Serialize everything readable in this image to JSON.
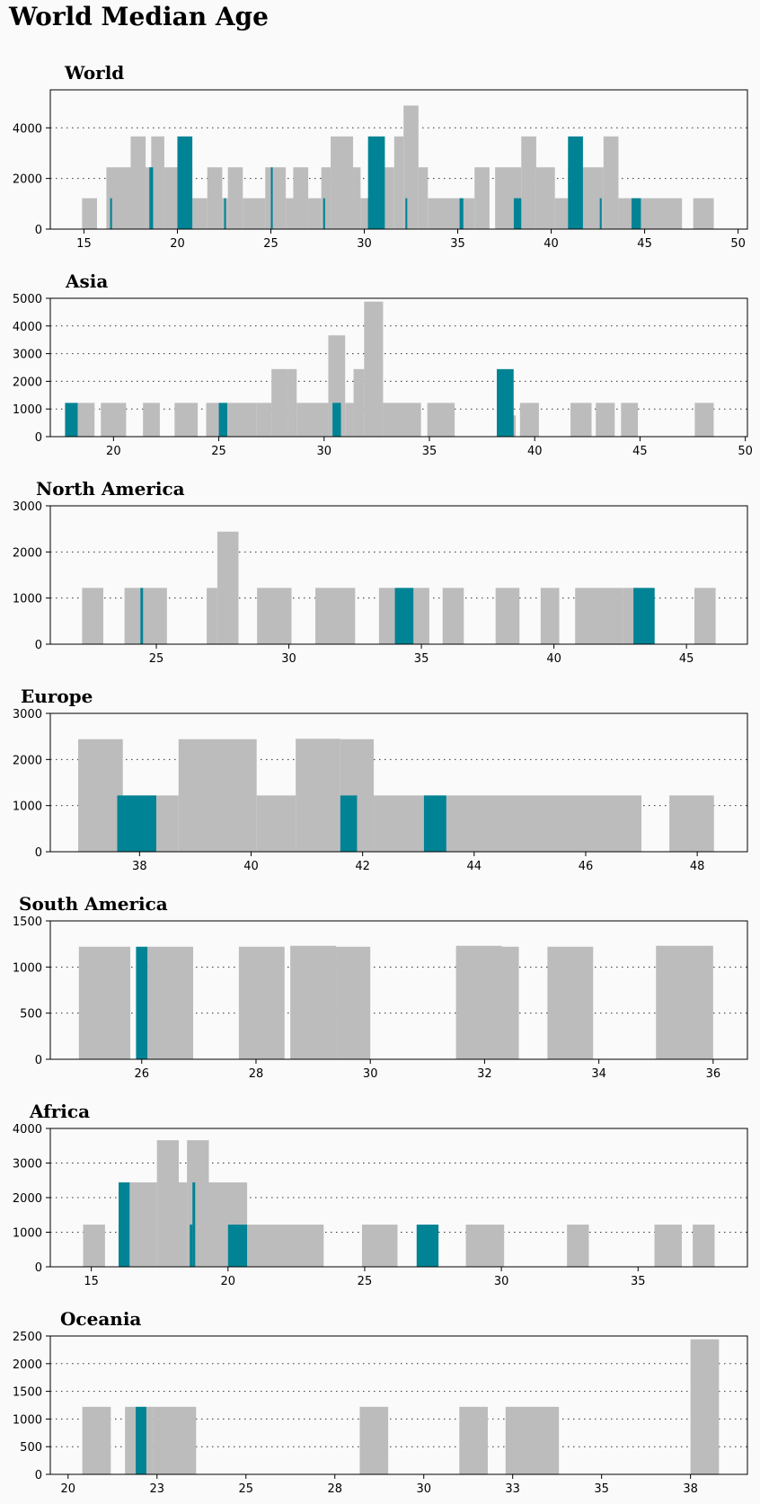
{
  "title": "World Median Age",
  "colors": {
    "background": "#fafafa",
    "bar": "#bcbcbc",
    "highlight": "#008394"
  },
  "chart_data": [
    {
      "type": "bar",
      "title": "World",
      "xlim": [
        13.2,
        50.5
      ],
      "ylim": [
        0,
        5500
      ],
      "xticks": [
        15,
        20,
        25,
        30,
        35,
        40,
        45,
        50
      ],
      "yticks": [
        0,
        2000,
        4000
      ],
      "grid": "y-dotted",
      "bars": [
        [
          14.9,
          15.7,
          1220,
          0
        ],
        [
          16.2,
          17.5,
          2440,
          0
        ],
        [
          17.5,
          18.3,
          3660,
          0
        ],
        [
          18.3,
          18.6,
          2440,
          0
        ],
        [
          18.6,
          19.3,
          3660,
          0
        ],
        [
          19.3,
          20.0,
          2440,
          0
        ],
        [
          20.0,
          20.8,
          2440,
          0
        ],
        [
          20.8,
          21.6,
          1220,
          0
        ],
        [
          21.6,
          22.4,
          2440,
          0
        ],
        [
          22.4,
          22.7,
          1220,
          0
        ],
        [
          22.7,
          23.5,
          2440,
          0
        ],
        [
          23.5,
          24.7,
          1220,
          0
        ],
        [
          24.7,
          25.8,
          2440,
          0
        ],
        [
          25.8,
          26.2,
          1220,
          0
        ],
        [
          26.2,
          27.0,
          2440,
          0
        ],
        [
          27.0,
          27.7,
          1220,
          0
        ],
        [
          27.7,
          28.2,
          2440,
          0
        ],
        [
          28.2,
          29.4,
          3660,
          0
        ],
        [
          29.4,
          29.8,
          2440,
          0
        ],
        [
          29.8,
          30.3,
          1220,
          0
        ],
        [
          31.1,
          31.6,
          2440,
          0
        ],
        [
          31.6,
          32.1,
          3660,
          0
        ],
        [
          32.1,
          32.9,
          4880,
          0
        ],
        [
          32.9,
          33.4,
          2440,
          0
        ],
        [
          33.4,
          35.9,
          1220,
          0
        ],
        [
          35.9,
          36.7,
          2440,
          0
        ],
        [
          37.0,
          38.4,
          2440,
          0
        ],
        [
          38.4,
          39.2,
          3660,
          0
        ],
        [
          39.2,
          40.2,
          2440,
          0
        ],
        [
          40.2,
          40.9,
          1220,
          0
        ],
        [
          40.9,
          42.8,
          2440,
          0
        ],
        [
          42.8,
          43.6,
          3660,
          0
        ],
        [
          43.6,
          44.4,
          1220,
          0
        ],
        [
          44.4,
          47.0,
          1220,
          0
        ],
        [
          47.6,
          48.7,
          1220,
          0
        ],
        [
          16.4,
          16.5,
          1220,
          1
        ],
        [
          18.5,
          18.7,
          2440,
          1
        ],
        [
          20.0,
          20.8,
          3660,
          1
        ],
        [
          22.5,
          22.6,
          1220,
          1
        ],
        [
          25.0,
          25.1,
          2440,
          1
        ],
        [
          27.8,
          27.9,
          1220,
          1
        ],
        [
          30.2,
          31.1,
          3660,
          1
        ],
        [
          30.2,
          30.3,
          1220,
          1
        ],
        [
          32.2,
          32.3,
          1220,
          1
        ],
        [
          35.1,
          35.3,
          1220,
          1
        ],
        [
          38.0,
          38.4,
          1220,
          1
        ],
        [
          40.9,
          41.7,
          3660,
          1
        ],
        [
          42.6,
          42.7,
          1220,
          1
        ],
        [
          44.3,
          44.8,
          1220,
          1
        ]
      ]
    },
    {
      "type": "bar",
      "title": "Asia",
      "xlim": [
        17.0,
        50.1
      ],
      "ylim": [
        0,
        5000
      ],
      "xticks": [
        20,
        25,
        30,
        35,
        40,
        45,
        50
      ],
      "yticks": [
        0,
        1000,
        2000,
        3000,
        4000,
        5000
      ],
      "grid": "y-dotted",
      "bars": [
        [
          18.3,
          19.1,
          1220,
          0
        ],
        [
          19.4,
          20.6,
          1220,
          0
        ],
        [
          21.4,
          22.2,
          1220,
          0
        ],
        [
          22.9,
          24.0,
          1220,
          0
        ],
        [
          24.4,
          25.2,
          1220,
          0
        ],
        [
          25.2,
          26.0,
          1220,
          0
        ],
        [
          26.0,
          26.8,
          1220,
          0
        ],
        [
          26.8,
          27.5,
          1220,
          0
        ],
        [
          27.5,
          28.3,
          2440,
          0
        ],
        [
          28.3,
          28.7,
          2440,
          0
        ],
        [
          28.7,
          29.5,
          1220,
          0
        ],
        [
          29.5,
          30.2,
          1220,
          0
        ],
        [
          30.2,
          31.0,
          3660,
          0
        ],
        [
          31.0,
          31.4,
          1220,
          0
        ],
        [
          31.4,
          31.9,
          2440,
          0
        ],
        [
          31.9,
          32.8,
          4880,
          0
        ],
        [
          32.8,
          33.4,
          1220,
          0
        ],
        [
          33.4,
          34.6,
          1220,
          0
        ],
        [
          34.9,
          36.2,
          1220,
          0
        ],
        [
          38.5,
          39.1,
          770,
          0
        ],
        [
          39.3,
          40.2,
          1220,
          0
        ],
        [
          41.7,
          42.7,
          1220,
          0
        ],
        [
          42.9,
          43.8,
          1220,
          0
        ],
        [
          44.1,
          44.9,
          1220,
          0
        ],
        [
          47.6,
          48.5,
          1220,
          0
        ],
        [
          17.7,
          18.3,
          1220,
          1
        ],
        [
          25.0,
          25.4,
          1220,
          1
        ],
        [
          30.4,
          30.8,
          1220,
          1
        ],
        [
          38.2,
          39.0,
          2440,
          1
        ]
      ]
    },
    {
      "type": "bar",
      "title": "North America",
      "xlim": [
        21.0,
        47.3
      ],
      "ylim": [
        0,
        3000
      ],
      "xticks": [
        25,
        30,
        35,
        40,
        45
      ],
      "yticks": [
        0,
        1000,
        2000,
        3000
      ],
      "grid": "y-dotted",
      "bars": [
        [
          22.2,
          23.0,
          1220,
          0
        ],
        [
          23.8,
          24.5,
          1220,
          0
        ],
        [
          24.5,
          25.4,
          1220,
          0
        ],
        [
          26.9,
          27.3,
          1220,
          0
        ],
        [
          27.3,
          28.1,
          2440,
          0
        ],
        [
          28.8,
          30.1,
          1220,
          0
        ],
        [
          31.0,
          32.5,
          1220,
          0
        ],
        [
          33.4,
          34.7,
          1220,
          0
        ],
        [
          34.7,
          35.3,
          1220,
          0
        ],
        [
          35.8,
          36.6,
          1220,
          0
        ],
        [
          37.8,
          38.7,
          1220,
          0
        ],
        [
          39.5,
          40.2,
          1220,
          0
        ],
        [
          40.8,
          42.6,
          1220,
          0
        ],
        [
          42.6,
          43.7,
          1220,
          0
        ],
        [
          45.3,
          46.1,
          1220,
          0
        ],
        [
          24.4,
          24.5,
          1220,
          1
        ],
        [
          34.0,
          34.7,
          1220,
          1
        ],
        [
          43.0,
          43.8,
          1220,
          1
        ]
      ]
    },
    {
      "type": "bar",
      "title": "Europe",
      "xlim": [
        36.4,
        48.9
      ],
      "ylim": [
        0,
        3000
      ],
      "xticks": [
        38,
        40,
        42,
        44,
        46,
        48
      ],
      "yticks": [
        0,
        1000,
        2000,
        3000
      ],
      "grid": "y-dotted",
      "bars": [
        [
          36.9,
          37.7,
          2440,
          0
        ],
        [
          37.7,
          38.3,
          1220,
          0
        ],
        [
          38.3,
          38.7,
          1220,
          0
        ],
        [
          38.7,
          40.1,
          2440,
          0
        ],
        [
          40.1,
          40.8,
          1220,
          0
        ],
        [
          40.8,
          41.6,
          2450,
          0
        ],
        [
          41.6,
          42.2,
          2440,
          0
        ],
        [
          42.2,
          47.0,
          1220,
          0
        ],
        [
          47.5,
          48.3,
          1220,
          0
        ],
        [
          37.6,
          38.3,
          1220,
          1
        ],
        [
          41.6,
          41.9,
          1220,
          1
        ],
        [
          43.1,
          43.5,
          1220,
          1
        ]
      ]
    },
    {
      "type": "bar",
      "title": "South America",
      "xlim": [
        24.4,
        36.6
      ],
      "ylim": [
        0,
        1500
      ],
      "xticks": [
        26,
        28,
        30,
        32,
        34,
        36
      ],
      "yticks": [
        0,
        500,
        1000,
        1500
      ],
      "grid": "y-dotted",
      "bars": [
        [
          24.9,
          25.8,
          1220,
          0
        ],
        [
          26.1,
          26.9,
          1220,
          0
        ],
        [
          27.7,
          28.5,
          1220,
          0
        ],
        [
          28.6,
          29.4,
          1230,
          0
        ],
        [
          29.4,
          30.0,
          1220,
          0
        ],
        [
          31.5,
          32.3,
          1230,
          0
        ],
        [
          32.3,
          32.6,
          1220,
          0
        ],
        [
          33.1,
          33.9,
          1220,
          0
        ],
        [
          35.0,
          36.0,
          1230,
          0
        ],
        [
          25.9,
          26.1,
          1220,
          1
        ]
      ]
    },
    {
      "type": "bar",
      "title": "Africa",
      "xlim": [
        13.5,
        39.0
      ],
      "ylim": [
        0,
        4000
      ],
      "xticks": [
        15,
        20,
        25,
        30,
        35
      ],
      "yticks": [
        0,
        1000,
        2000,
        3000,
        4000
      ],
      "grid": "y-dotted",
      "bars": [
        [
          14.7,
          15.5,
          1220,
          0
        ],
        [
          16.0,
          16.7,
          2440,
          0
        ],
        [
          16.4,
          17.4,
          2440,
          0
        ],
        [
          17.4,
          18.2,
          3660,
          0
        ],
        [
          18.2,
          18.5,
          2440,
          0
        ],
        [
          18.5,
          19.3,
          3660,
          0
        ],
        [
          19.3,
          20.7,
          2440,
          0
        ],
        [
          20.7,
          23.5,
          1220,
          0
        ],
        [
          24.9,
          26.2,
          1220,
          0
        ],
        [
          28.7,
          30.1,
          1220,
          0
        ],
        [
          32.4,
          33.2,
          1220,
          0
        ],
        [
          35.6,
          36.6,
          1220,
          0
        ],
        [
          37.0,
          37.8,
          1220,
          0
        ],
        [
          16.0,
          16.4,
          2440,
          1
        ],
        [
          16.0,
          16.3,
          1220,
          1
        ],
        [
          18.7,
          18.8,
          2440,
          1
        ],
        [
          18.6,
          18.7,
          1220,
          1
        ],
        [
          20.0,
          20.7,
          1220,
          1
        ],
        [
          26.9,
          27.7,
          1220,
          1
        ]
      ]
    },
    {
      "type": "bar",
      "title": "Oceania",
      "xlim": [
        19.5,
        39.1
      ],
      "ylim": [
        0,
        2500
      ],
      "xticks": [
        20.0,
        22.5,
        25.0,
        27.5,
        30.0,
        32.5,
        35.0,
        37.5
      ],
      "yticks": [
        0,
        500,
        1000,
        1500,
        2000,
        2500
      ],
      "grid": "y-dotted",
      "bars": [
        [
          20.4,
          21.2,
          1220,
          0
        ],
        [
          21.6,
          22.4,
          1220,
          0
        ],
        [
          22.4,
          23.6,
          1220,
          0
        ],
        [
          28.2,
          29.0,
          1220,
          0
        ],
        [
          31.0,
          31.8,
          1220,
          0
        ],
        [
          32.3,
          33.8,
          1220,
          0
        ],
        [
          37.5,
          38.3,
          2440,
          0
        ],
        [
          21.9,
          22.2,
          1220,
          1
        ]
      ]
    }
  ]
}
